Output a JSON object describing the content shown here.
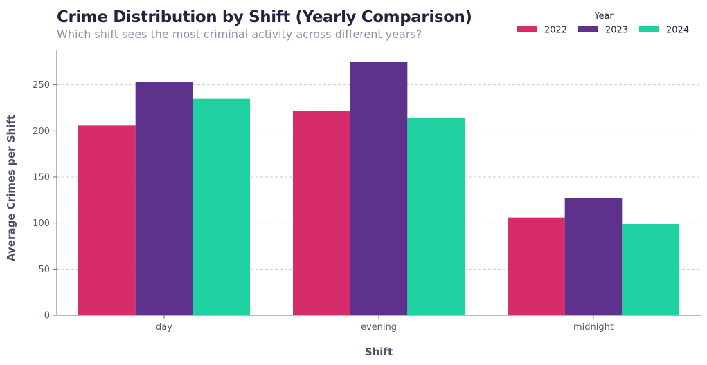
{
  "chart_data": {
    "type": "bar",
    "title": "Crime Distribution by Shift (Yearly Comparison)",
    "subtitle": "Which shift sees the most criminal activity across different years?",
    "xlabel": "Shift",
    "ylabel": "Average Crimes per Shift",
    "categories": [
      "day",
      "evening",
      "midnight"
    ],
    "series": [
      {
        "name": "2022",
        "color": "#d62c6b",
        "values": [
          206,
          222,
          106
        ]
      },
      {
        "name": "2023",
        "color": "#5e318d",
        "values": [
          253,
          275,
          127
        ]
      },
      {
        "name": "2024",
        "color": "#1fd1a1",
        "values": [
          235,
          214,
          99
        ]
      }
    ],
    "ylim": [
      0,
      288
    ],
    "yticks": [
      0,
      50,
      100,
      150,
      200,
      250
    ],
    "grid": "horizontal-dashed",
    "legend": {
      "title": "Year",
      "placement": "top-right"
    }
  }
}
